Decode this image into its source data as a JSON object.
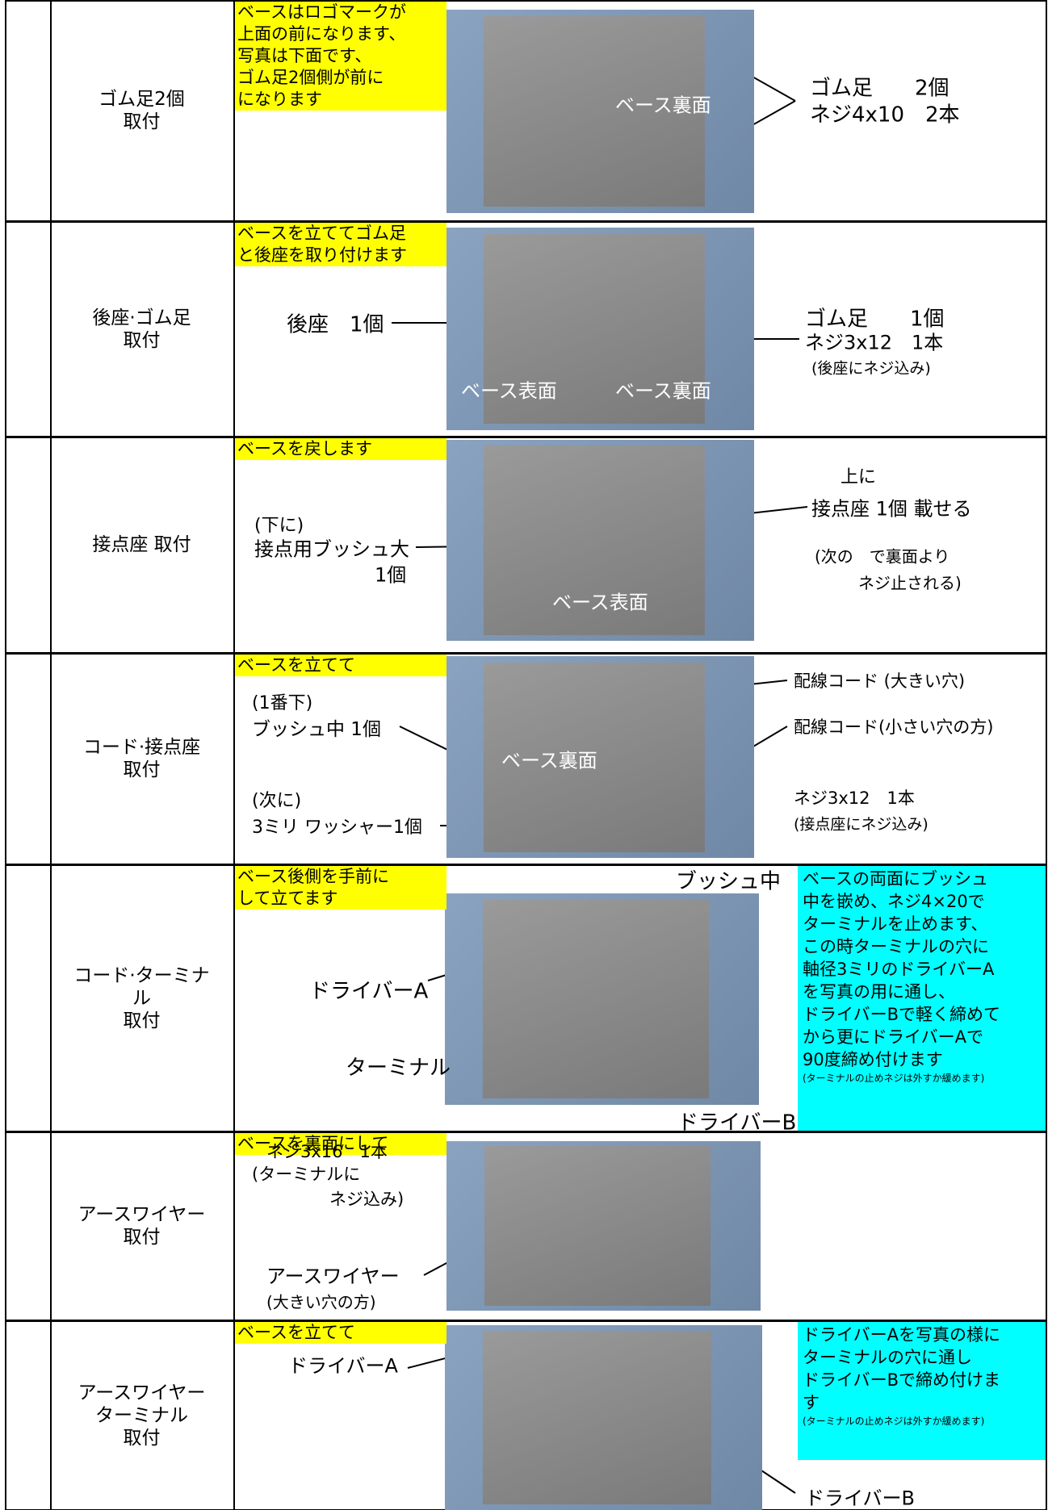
{
  "rows": [
    {
      "label": [
        "ゴム足2個",
        "取付"
      ],
      "instruction": [
        "ベースはロゴマークが",
        "上面の前になります、",
        "写真は下面です、",
        "ゴム足2個側が前に",
        "になります"
      ],
      "captions": [
        "ベース裏面"
      ],
      "annotations": [
        "ゴム足　　2個",
        "ネジ4x10　2本"
      ]
    },
    {
      "label": [
        "後座·ゴム足",
        "取付"
      ],
      "instruction": [
        "ベースを立ててゴム足",
        "と後座を取り付けます"
      ],
      "captions": [
        "ベース表面",
        "ベース裏面"
      ],
      "annotations": [
        "後座　1個",
        "ゴム足　　1個",
        "ネジ3x12　1本",
        "(後座にネジ込み)"
      ]
    },
    {
      "label": [
        "接点座 取付"
      ],
      "instruction": [
        "ベースを戻します"
      ],
      "captions": [
        "ベース表面"
      ],
      "annotations": [
        "(下に)",
        "接点用ブッシュ大",
        "1個",
        "上に",
        "接点座 1個 載せる",
        "(次の　で裏面より",
        "ネジ止される)"
      ]
    },
    {
      "label": [
        "コード·接点座",
        "取付"
      ],
      "instruction": [
        "ベースを立てて"
      ],
      "captions": [
        "ベース裏面"
      ],
      "annotations": [
        "(1番下)",
        "ブッシュ中 1個",
        "(次に)",
        "3ミリ ワッシャー1個",
        "配線コード (大きい穴)",
        "配線コード(小さい穴の方)",
        "ネジ3x12　1本",
        "(接点座にネジ込み)"
      ]
    },
    {
      "label": [
        "コード·ターミナ",
        "ル",
        "取付"
      ],
      "instruction": [
        "ベース後側を手前に",
        "して立てます"
      ],
      "captions": [],
      "annotations": [
        "ブッシュ中",
        "ドライバーA",
        "ターミナル",
        "ドライバーB"
      ],
      "note": {
        "lines": [
          "ベースの両面にブッシュ",
          "中を嵌め、ネジ4×20で",
          "ターミナルを止めます、",
          "この時ターミナルの穴に",
          "軸径3ミリのドライバーA",
          "を写真の用に通し、",
          "ドライバーBで軽く締めて",
          "から更にドライバーAで",
          "90度締め付けます"
        ],
        "small": "(ターミナルの止めネジは外すか緩めます)"
      }
    },
    {
      "label": [
        "アースワイヤー",
        "取付"
      ],
      "instruction": [
        "ベースを裏面にして"
      ],
      "captions": [],
      "annotations": [
        "ネジ3x16　1本",
        "(ターミナルに",
        "ネジ込み)",
        "アースワイヤー",
        "(大きい穴の方)"
      ]
    },
    {
      "label": [
        "アースワイヤー",
        "ターミナル",
        "取付"
      ],
      "instruction": [
        "ベースを立てて"
      ],
      "captions": [],
      "annotations": [
        "ドライバーA",
        "ドライバーB"
      ],
      "note": {
        "lines": [
          "ドライバーAを写真の様に",
          "ターミナルの穴に通し",
          "ドライバーBで締め付けま",
          "す"
        ],
        "small": "(ターミナルの止めネジは外すか緩めます)"
      }
    }
  ]
}
